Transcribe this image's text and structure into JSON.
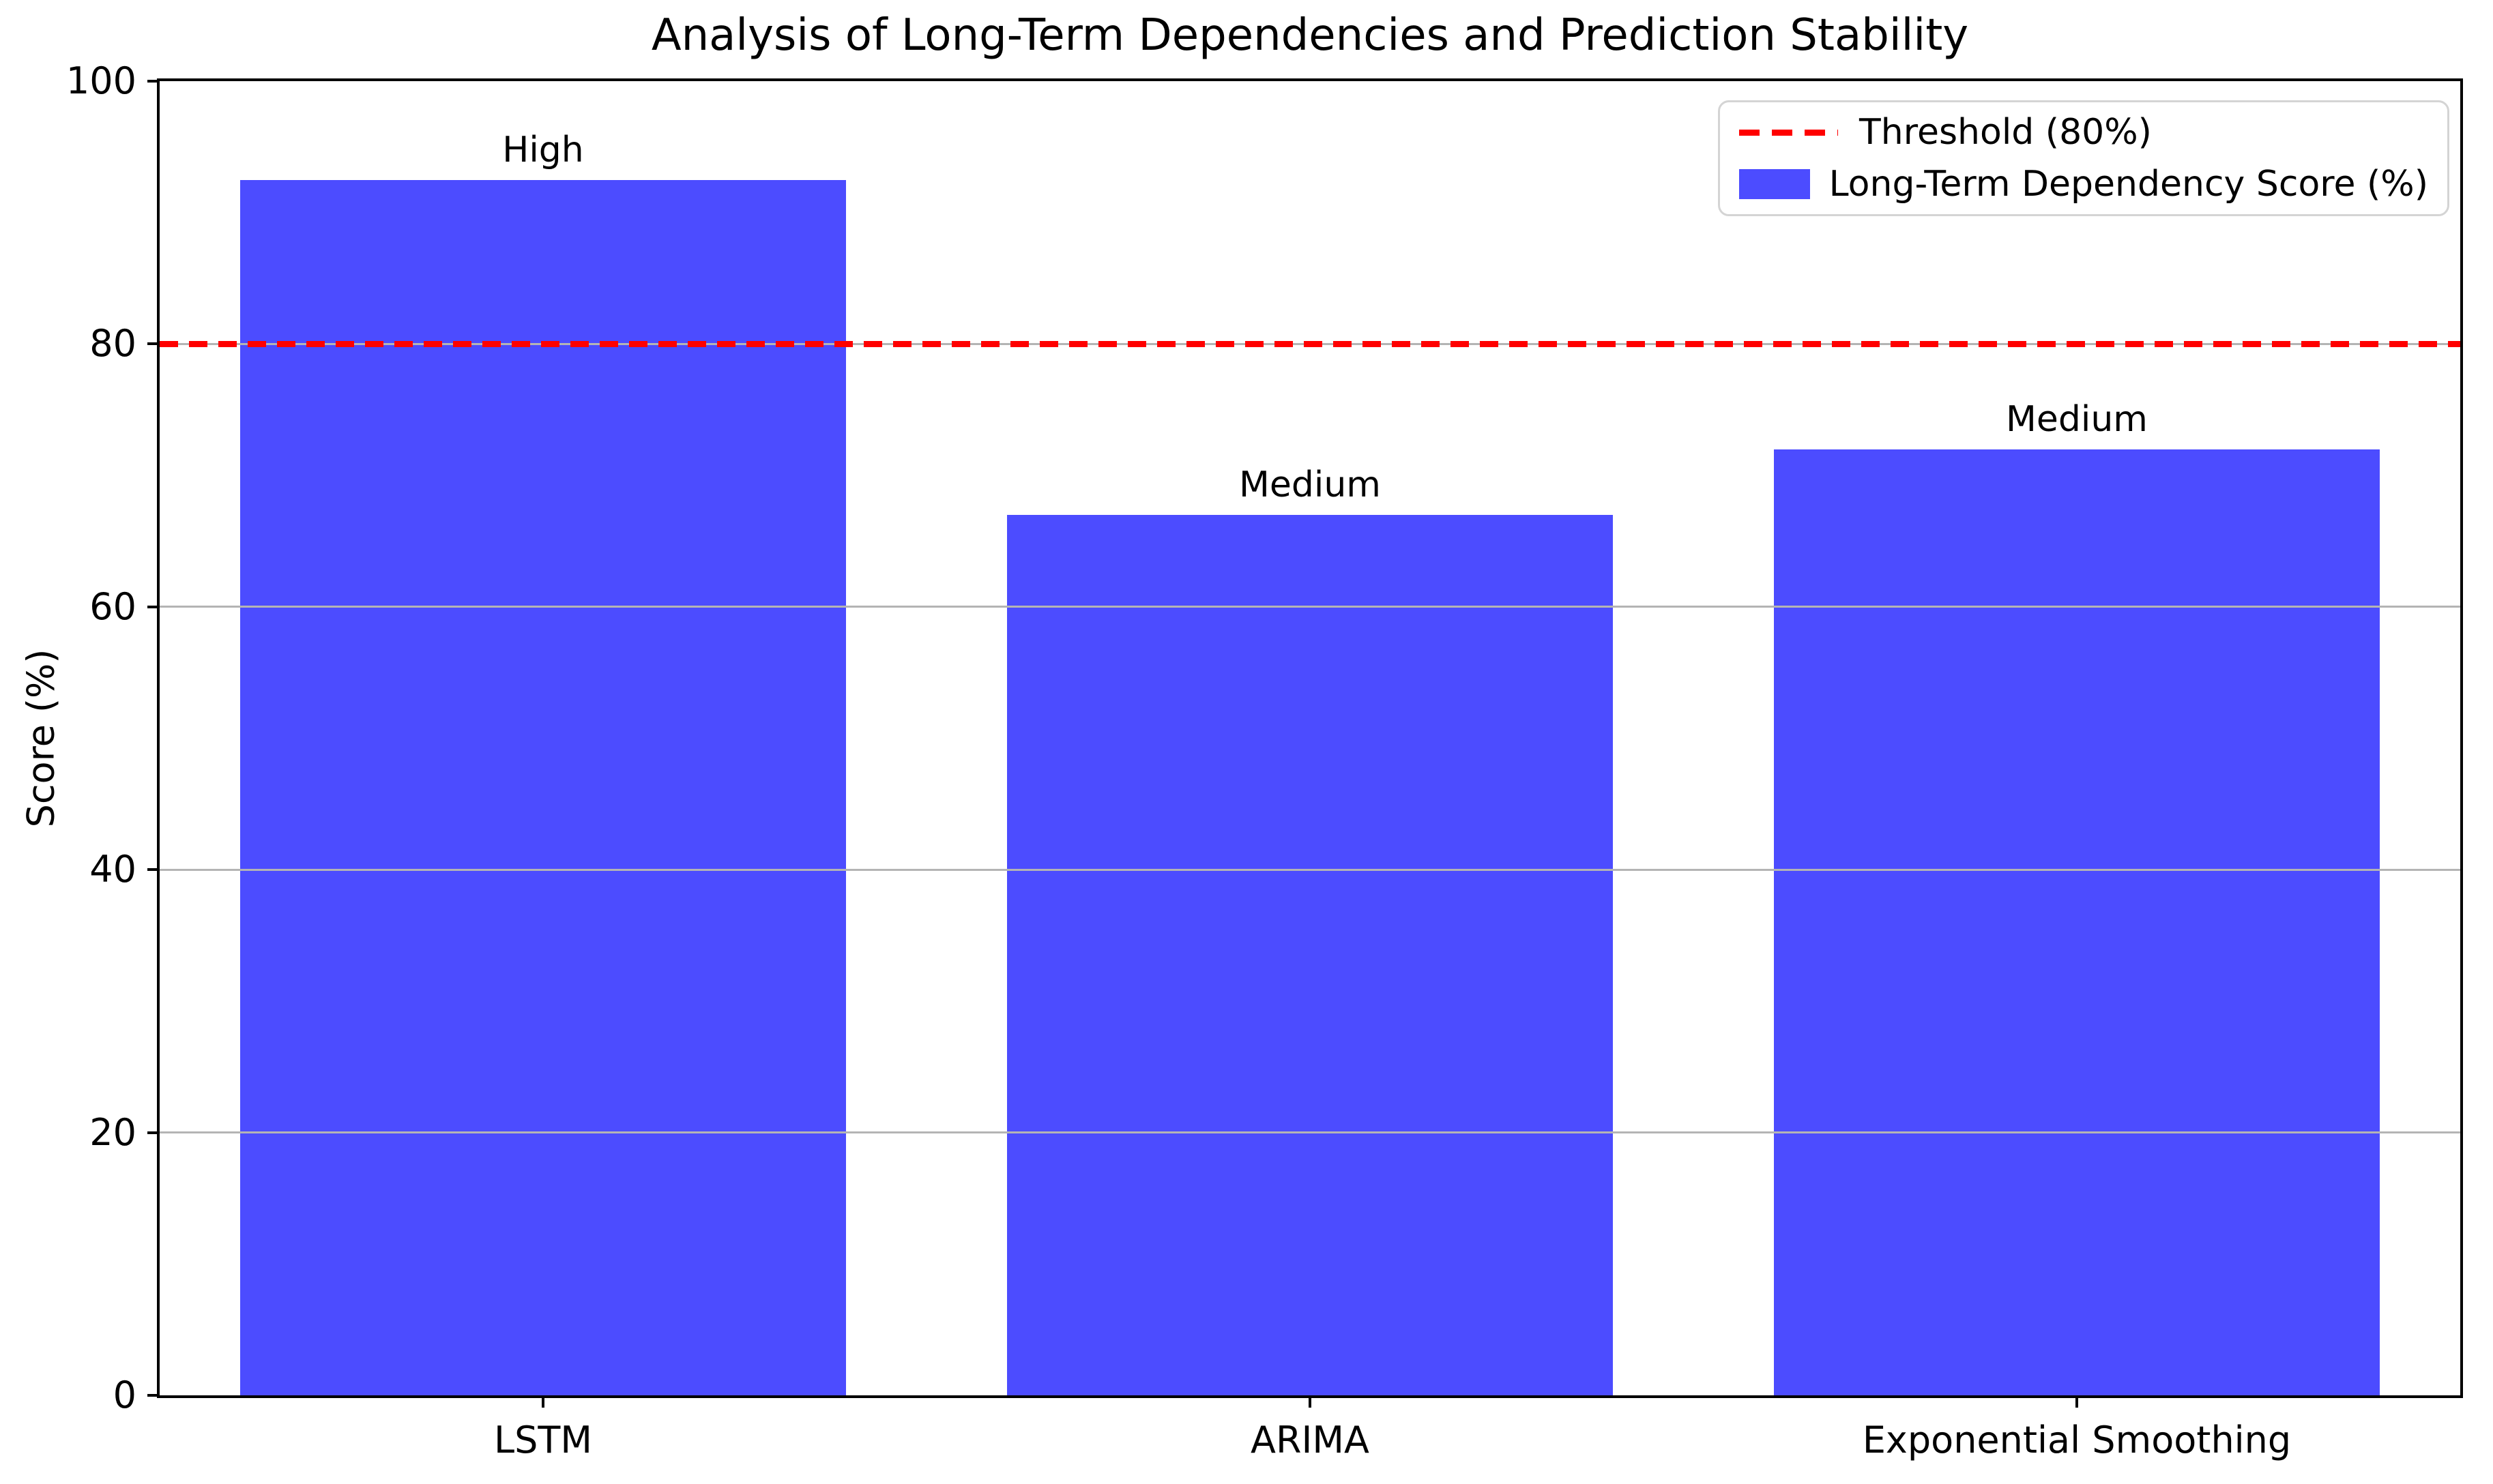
{
  "figure": {
    "title": "Analysis of Long-Term Dependencies and Prediction Stability",
    "ylabel": "Score (%)",
    "background_color": "#ffffff"
  },
  "legend": {
    "position": "upper right",
    "items": [
      {
        "label": "Threshold (80%)",
        "swatch": "dashed-line",
        "color": "#ff0000"
      },
      {
        "label": "Long-Term Dependency Score (%)",
        "swatch": "patch",
        "color": "#4c4cff"
      }
    ]
  },
  "chart_data": {
    "type": "bar",
    "title": "Analysis of Long-Term Dependencies and Prediction Stability",
    "categories": [
      "LSTM",
      "ARIMA",
      "Exponential Smoothing"
    ],
    "values": [
      92.5,
      67,
      72
    ],
    "bar_labels": [
      "High",
      "Medium",
      "Medium"
    ],
    "bar_color": "#4c4cff",
    "xlabel": "",
    "ylabel": "Score (%)",
    "ylim": [
      0,
      100
    ],
    "yticks": [
      0,
      20,
      40,
      60,
      80,
      100
    ],
    "grid": "horizontal",
    "grid_color": "#b4b4b4",
    "threshold": {
      "value": 80,
      "label": "Threshold (80%)",
      "color": "#ff0000",
      "style": "dashed"
    },
    "legend_position": "upper right"
  }
}
